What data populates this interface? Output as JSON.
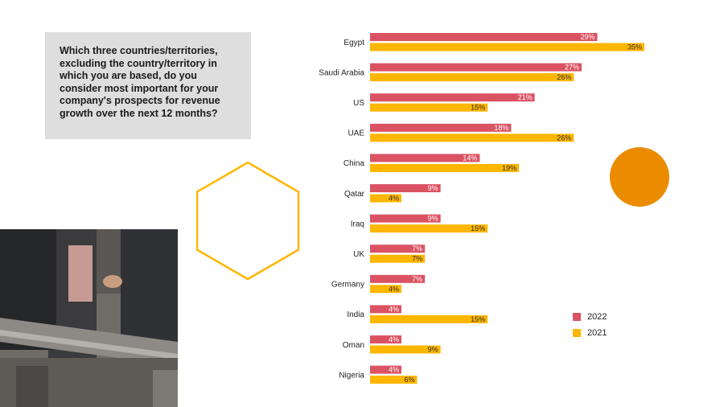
{
  "question": "Which three countries/territories, excluding the country/territory in which you are based, do you consider most important for your company's prospects for revenue growth over the next 12 months?",
  "colors": {
    "y2022": "#db5363",
    "y2021": "#ffb600",
    "accent_circle": "#eb8c00",
    "hexagon": "#ffb600"
  },
  "chart_data": {
    "type": "bar",
    "orientation": "horizontal",
    "categories": [
      "Egypt",
      "Saudi Arabia",
      "US",
      "UAE",
      "China",
      "Qatar",
      "Iraq",
      "UK",
      "Germany",
      "India",
      "Oman",
      "Nigeria"
    ],
    "series": [
      {
        "name": "2022",
        "values": [
          29,
          27,
          21,
          18,
          14,
          9,
          9,
          7,
          7,
          4,
          4,
          4
        ],
        "labels": [
          "29%",
          "27%",
          "21%",
          "18%",
          "14%",
          "9%",
          "9%",
          "7%",
          "7%",
          "4%",
          "4%",
          "4%"
        ]
      },
      {
        "name": "2021",
        "values": [
          35,
          26,
          15,
          26,
          19,
          4,
          15,
          7,
          4,
          15,
          9,
          6
        ],
        "labels": [
          "35%",
          "26%",
          "15%",
          "26%",
          "19%",
          "4%",
          "15%",
          "7%",
          "4%",
          "15%",
          "9%",
          "6%"
        ]
      }
    ],
    "xlim": [
      0,
      35
    ],
    "legend": "right",
    "grid": false
  }
}
